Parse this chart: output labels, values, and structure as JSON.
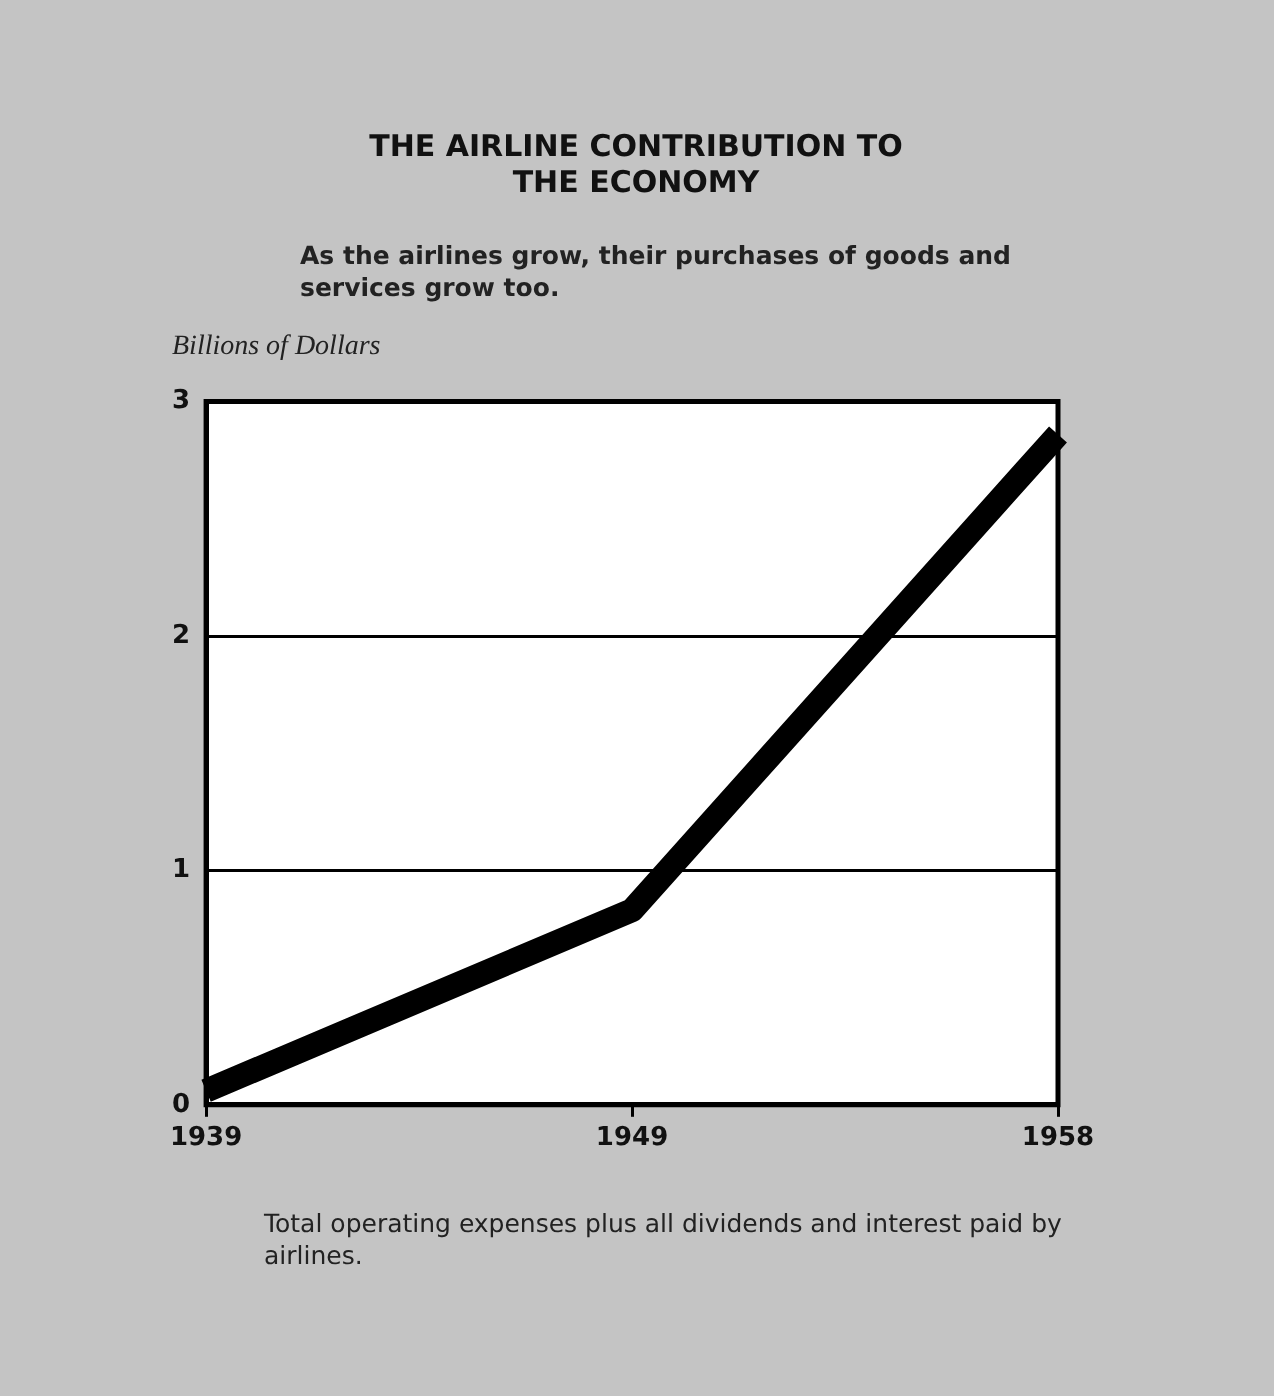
{
  "chart_data": {
    "type": "line",
    "title": "THE AIRLINE CONTRIBUTION TO THE ECONOMY",
    "subtitle": "As the airlines grow, their purchases of goods and services grow too.",
    "ylabel": "Billions of Dollars",
    "categories": [
      "1939",
      "1949",
      "1958"
    ],
    "series": [
      {
        "color": "#000000",
        "values": [
          0.06,
          0.83,
          2.86
        ]
      }
    ],
    "ylim": [
      0,
      3
    ],
    "yticks": [
      0,
      1,
      2,
      3
    ],
    "grid": "y",
    "legend": false,
    "marker": "none",
    "line_style": "solid",
    "annotations": [
      "Total operating expenses plus all dividends and interest paid by airlines."
    ]
  }
}
